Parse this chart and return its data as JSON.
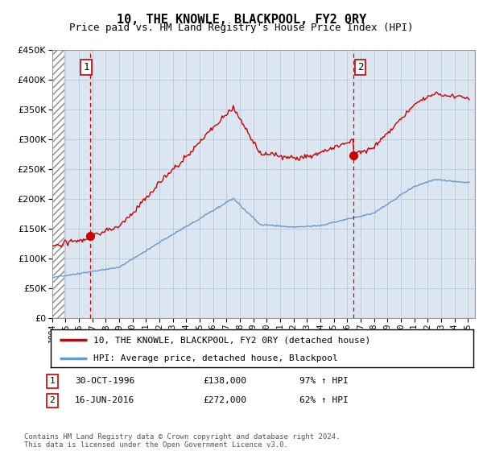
{
  "title": "10, THE KNOWLE, BLACKPOOL, FY2 0RY",
  "subtitle": "Price paid vs. HM Land Registry's House Price Index (HPI)",
  "ylim": [
    0,
    450000
  ],
  "yticks": [
    0,
    50000,
    100000,
    150000,
    200000,
    250000,
    300000,
    350000,
    400000,
    450000
  ],
  "x_start_year": 1994,
  "x_end_year": 2025,
  "legend_line1": "10, THE KNOWLE, BLACKPOOL, FY2 0RY (detached house)",
  "legend_line2": "HPI: Average price, detached house, Blackpool",
  "sale1_label": "1",
  "sale1_date": "30-OCT-1996",
  "sale1_price": "£138,000",
  "sale1_hpi": "97% ↑ HPI",
  "sale1_year": 1996.83,
  "sale1_value": 138000,
  "sale2_label": "2",
  "sale2_date": "16-JUN-2016",
  "sale2_price": "£272,000",
  "sale2_hpi": "62% ↑ HPI",
  "sale2_year": 2016.46,
  "sale2_value": 272000,
  "footnote": "Contains HM Land Registry data © Crown copyright and database right 2024.\nThis data is licensed under the Open Government Licence v3.0.",
  "line_color_red": "#cc0000",
  "line_color_blue": "#6699cc",
  "plot_bg_color": "#dce6f1",
  "hatch_bg_color": "#ffffff",
  "grid_color": "#b0c4de"
}
